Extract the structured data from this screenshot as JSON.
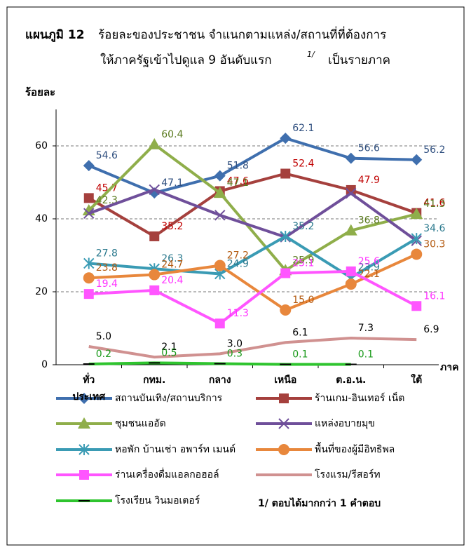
{
  "chart_data": {
    "type": "line",
    "title_label": "แผนภูมิ 12",
    "title": "ร้อยละของประชาชน  จำแนกตามแหล่ง/สถานที่ที่ต้องการ",
    "subtitle": "ให้ภาครัฐเข้าไปดูแล 9 อันดับแรก",
    "subtitle_note": "1/",
    "subtitle_end": "เป็นรายภาค",
    "y_label": "ร้อยละ",
    "x_label": "ภาค",
    "footnote": "1/ ตอบได้มากกว่า 1 คำตอบ",
    "categories": [
      "ทั่ว\nประเทศ",
      "กทม.",
      "กลาง",
      "เหนือ",
      "ต.อ.น.",
      "ใต้"
    ],
    "ylim": [
      0,
      70
    ],
    "yticks": [
      0,
      20,
      40,
      60
    ],
    "grid": true,
    "series": [
      {
        "name": "สถานบันเทิง/สถานบริการ",
        "color": "#3f6fae",
        "label_color": "#2f4f7f",
        "marker": "diamond",
        "values": [
          54.6,
          47.1,
          51.8,
          62.1,
          56.6,
          56.2
        ]
      },
      {
        "name": "ร้านเกม-อินเทอร์ เน็ต",
        "color": "#a5403d",
        "label_color": "#c00000",
        "marker": "square",
        "values": [
          45.7,
          35.2,
          47.6,
          52.4,
          47.9,
          41.6
        ]
      },
      {
        "name": "ชุมชนแออัด",
        "color": "#8fae4a",
        "label_color": "#5a7a1e",
        "marker": "triangle",
        "values": [
          42.3,
          60.4,
          47.1,
          25.9,
          36.8,
          41.3
        ]
      },
      {
        "name": "แหล่งอบายมุข",
        "color": "#6f4f9a",
        "marker": "x",
        "data_labels": false,
        "values": [
          41.5,
          48,
          41,
          35,
          47,
          34
        ]
      },
      {
        "name": "หอพัก บ้านเช่า อพาร์ท เมนต์",
        "color": "#3a9bb4",
        "label_color": "#2c7a8e",
        "marker": "asterisk",
        "values": [
          27.8,
          26.3,
          24.9,
          35.2,
          23.9,
          34.6
        ]
      },
      {
        "name": "พื้นที่ของผู้มีอิทธิพล",
        "color": "#e8873c",
        "label_color": "#b35a10",
        "marker": "circle",
        "values": [
          23.8,
          24.7,
          27.2,
          15,
          22.1,
          30.3
        ],
        "value_labels": [
          "23.8",
          "24.7",
          "27.2",
          "15.0",
          "22.1",
          "30.3"
        ]
      },
      {
        "name": "ร่านเครื่องดื่มแอลกอฮอล์",
        "color": "#ff55ff",
        "label_color": "#ff33ff",
        "marker": "square",
        "values": [
          19.4,
          20.4,
          11.3,
          25.1,
          25.6,
          16.1
        ]
      },
      {
        "name": "โรงแรม/รีสอร์ท",
        "color": "#d09190",
        "label_color": "#000000",
        "marker": "none",
        "values": [
          5,
          2.1,
          3,
          6.1,
          7.3,
          6.9
        ],
        "value_labels": [
          "5.0",
          "2.1",
          "3.0",
          "6.1",
          "7.3",
          "6.9"
        ]
      },
      {
        "name": "โรงเรียน วินมอเตอร์",
        "color": "#2ec42e",
        "label_color": "#1a9a1a",
        "marker": "dash",
        "values": [
          0.2,
          0.5,
          0.3,
          0.1,
          0.1,
          null
        ]
      }
    ]
  }
}
